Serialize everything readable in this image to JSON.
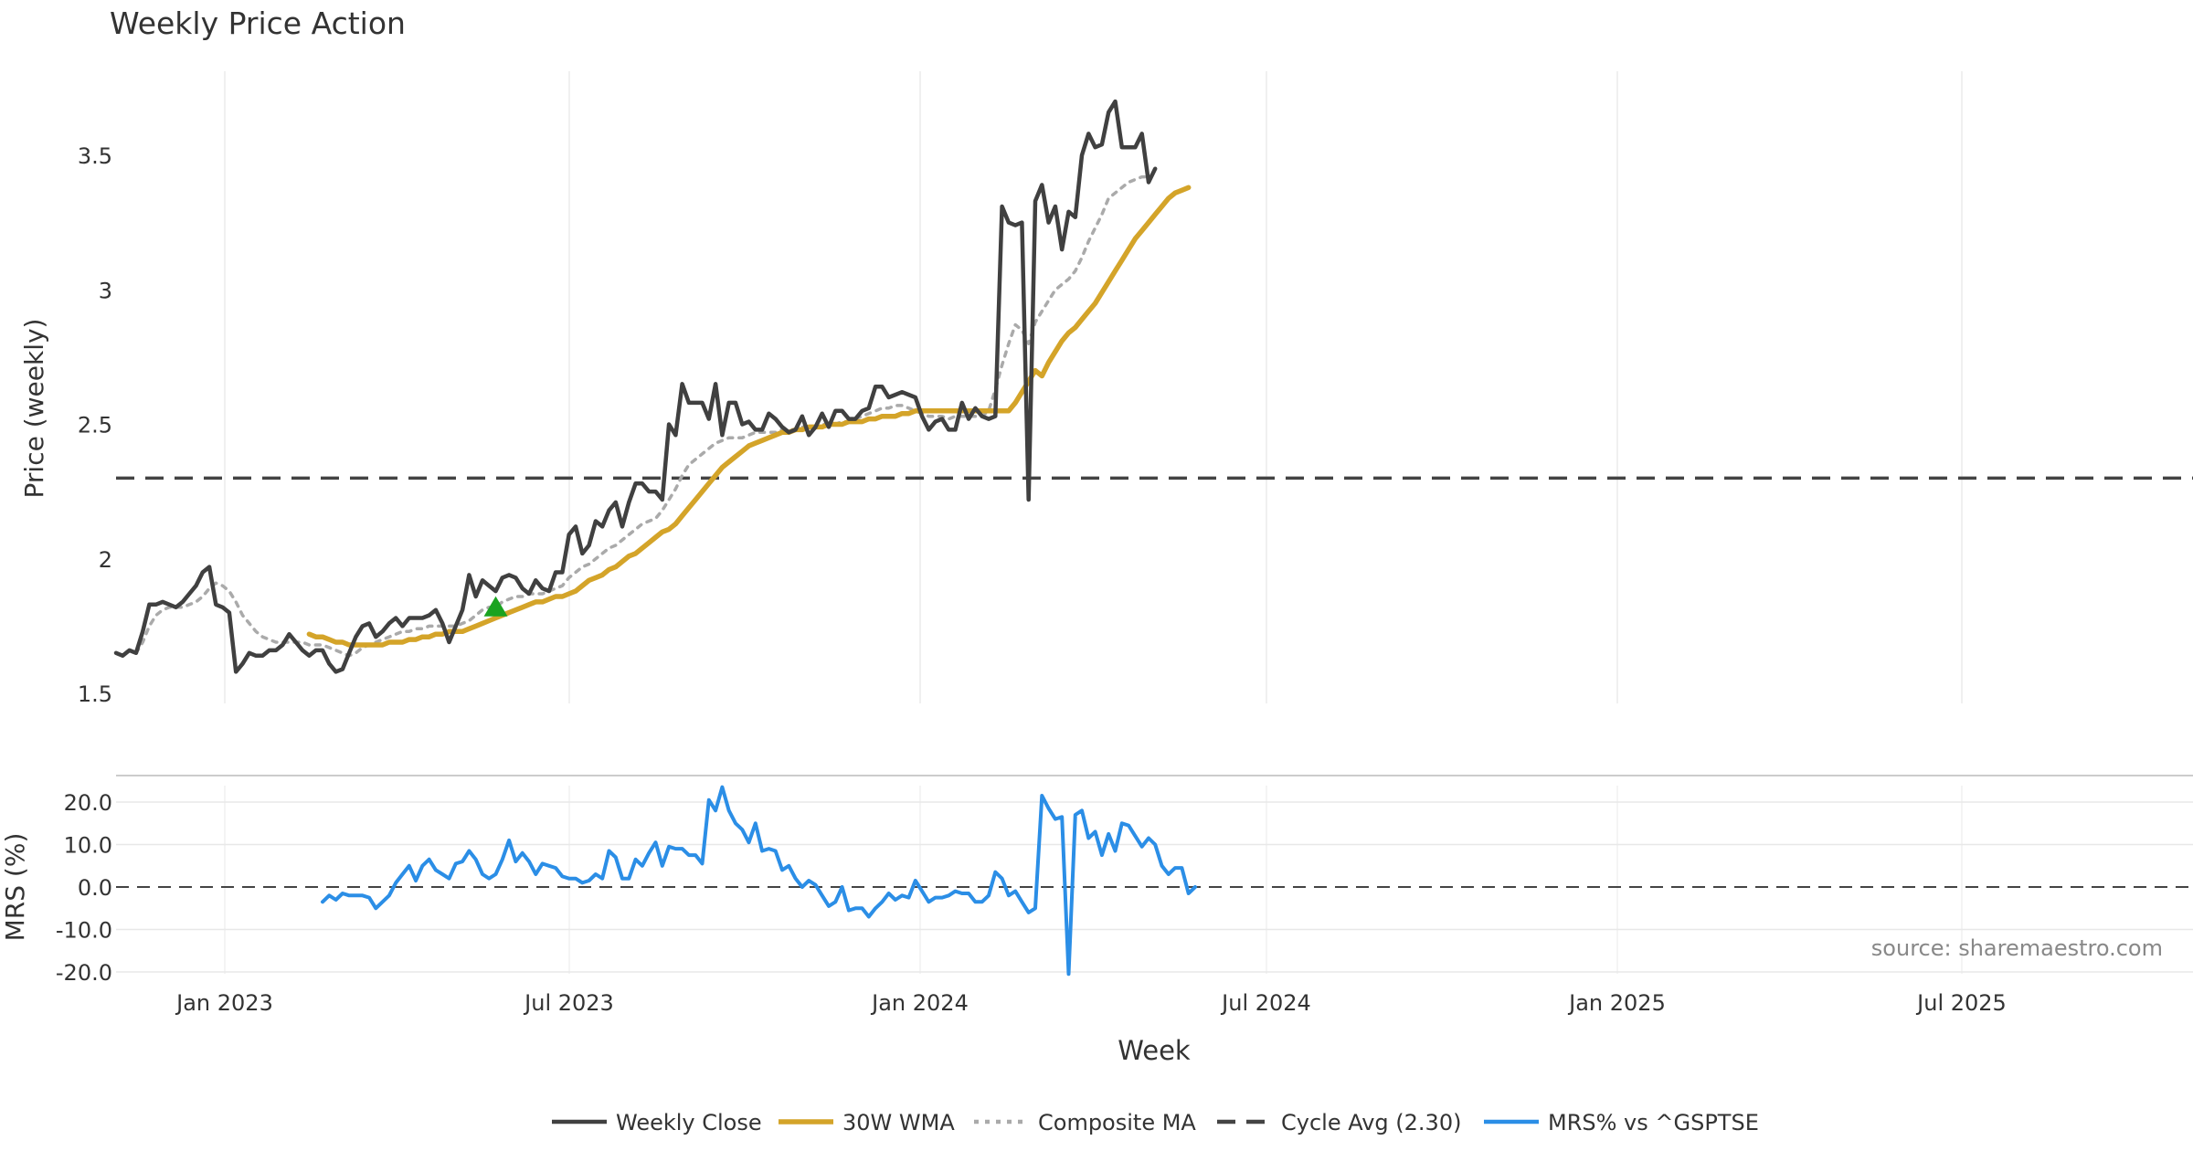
{
  "chart_data": {
    "type": "line",
    "title": "Weekly Price Action",
    "xlabel": "Week",
    "source": "source: sharemaestro.com",
    "x_ticks": [
      "Jan 2023",
      "Jul 2023",
      "Jan 2024",
      "Jul 2024",
      "Jan 2025",
      "Jul 2025"
    ],
    "colors": {
      "weekly_close": "#404040",
      "wma30": "#d4a429",
      "composite": "#aaaaaa",
      "cycle": "#444444",
      "mrs": "#2b8ee6",
      "signal": "#1aa320"
    },
    "price_panel": {
      "ylabel": "Price (weekly)",
      "ylim": [
        1.5,
        3.75
      ],
      "yticks": [
        "1.5",
        "2",
        "2.5",
        "3",
        "3.5"
      ],
      "cycle_avg": 2.3,
      "signal": {
        "label": "buy-signal",
        "week": 57,
        "value": 1.82
      },
      "series": [
        {
          "key": "weekly_close",
          "name": "Weekly Close",
          "start_week": 0,
          "values": [
            1.65,
            1.64,
            1.66,
            1.65,
            1.73,
            1.83,
            1.83,
            1.84,
            1.83,
            1.82,
            1.84,
            1.87,
            1.9,
            1.95,
            1.97,
            1.83,
            1.82,
            1.8,
            1.58,
            1.61,
            1.65,
            1.64,
            1.64,
            1.66,
            1.66,
            1.68,
            1.72,
            1.69,
            1.66,
            1.64,
            1.66,
            1.66,
            1.61,
            1.58,
            1.59,
            1.65,
            1.71,
            1.75,
            1.76,
            1.71,
            1.73,
            1.76,
            1.78,
            1.75,
            1.78,
            1.78,
            1.78,
            1.79,
            1.81,
            1.76,
            1.69,
            1.75,
            1.81,
            1.94,
            1.86,
            1.92,
            1.9,
            1.88,
            1.93,
            1.94,
            1.93,
            1.89,
            1.87,
            1.92,
            1.89,
            1.88,
            1.95,
            1.95,
            2.09,
            2.12,
            2.02,
            2.05,
            2.14,
            2.12,
            2.18,
            2.21,
            2.12,
            2.21,
            2.28,
            2.28,
            2.25,
            2.25,
            2.22,
            2.5,
            2.46,
            2.65,
            2.58,
            2.58,
            2.58,
            2.52,
            2.65,
            2.46,
            2.58,
            2.58,
            2.5,
            2.51,
            2.48,
            2.48,
            2.54,
            2.52,
            2.49,
            2.47,
            2.48,
            2.53,
            2.46,
            2.49,
            2.54,
            2.49,
            2.55,
            2.55,
            2.52,
            2.52,
            2.55,
            2.56,
            2.64,
            2.64,
            2.6,
            2.61,
            2.62,
            2.61,
            2.6,
            2.53,
            2.48,
            2.51,
            2.52,
            2.48,
            2.48,
            2.58,
            2.52,
            2.56,
            2.53,
            2.52,
            2.53,
            3.31,
            3.25,
            3.24,
            3.25,
            2.22,
            3.33,
            3.39,
            3.25,
            3.31,
            3.15,
            3.29,
            3.27,
            3.5,
            3.58,
            3.53,
            3.54,
            3.66,
            3.7,
            3.53,
            3.53,
            3.53,
            3.58,
            3.4,
            3.45
          ]
        },
        {
          "key": "wma30",
          "name": "30W WMA",
          "start_week": 29,
          "values": [
            1.72,
            1.71,
            1.71,
            1.7,
            1.69,
            1.69,
            1.68,
            1.68,
            1.68,
            1.68,
            1.68,
            1.68,
            1.69,
            1.69,
            1.69,
            1.7,
            1.7,
            1.71,
            1.71,
            1.72,
            1.72,
            1.73,
            1.73,
            1.73,
            1.74,
            1.75,
            1.76,
            1.77,
            1.78,
            1.79,
            1.8,
            1.81,
            1.82,
            1.83,
            1.84,
            1.84,
            1.85,
            1.86,
            1.86,
            1.87,
            1.88,
            1.9,
            1.92,
            1.93,
            1.94,
            1.96,
            1.97,
            1.99,
            2.01,
            2.02,
            2.04,
            2.06,
            2.08,
            2.1,
            2.11,
            2.13,
            2.16,
            2.19,
            2.22,
            2.25,
            2.28,
            2.31,
            2.34,
            2.36,
            2.38,
            2.4,
            2.42,
            2.43,
            2.44,
            2.45,
            2.46,
            2.47,
            2.47,
            2.48,
            2.48,
            2.49,
            2.49,
            2.49,
            2.5,
            2.5,
            2.5,
            2.51,
            2.51,
            2.51,
            2.52,
            2.52,
            2.53,
            2.53,
            2.53,
            2.54,
            2.54,
            2.55,
            2.55,
            2.55,
            2.55,
            2.55,
            2.55,
            2.55,
            2.55,
            2.55,
            2.55,
            2.55,
            2.55,
            2.55,
            2.55,
            2.55,
            2.58,
            2.62,
            2.66,
            2.7,
            2.68,
            2.73,
            2.77,
            2.81,
            2.84,
            2.86,
            2.89,
            2.92,
            2.95,
            2.99,
            3.03,
            3.07,
            3.11,
            3.15,
            3.19,
            3.22,
            3.25,
            3.28,
            3.31,
            3.34,
            3.36,
            3.37,
            3.38
          ]
        },
        {
          "key": "composite",
          "name": "Composite MA",
          "start_week": 3,
          "values": [
            1.65,
            1.69,
            1.75,
            1.79,
            1.81,
            1.82,
            1.82,
            1.82,
            1.83,
            1.84,
            1.86,
            1.89,
            1.91,
            1.9,
            1.88,
            1.84,
            1.79,
            1.76,
            1.73,
            1.71,
            1.7,
            1.69,
            1.69,
            1.69,
            1.69,
            1.69,
            1.68,
            1.68,
            1.68,
            1.67,
            1.66,
            1.65,
            1.64,
            1.65,
            1.67,
            1.68,
            1.69,
            1.7,
            1.71,
            1.72,
            1.73,
            1.73,
            1.74,
            1.74,
            1.75,
            1.75,
            1.75,
            1.75,
            1.75,
            1.76,
            1.77,
            1.79,
            1.81,
            1.82,
            1.82,
            1.84,
            1.85,
            1.86,
            1.86,
            1.87,
            1.87,
            1.87,
            1.88,
            1.89,
            1.9,
            1.93,
            1.95,
            1.97,
            1.98,
            2.0,
            2.02,
            2.04,
            2.05,
            2.07,
            2.09,
            2.11,
            2.13,
            2.14,
            2.15,
            2.18,
            2.22,
            2.26,
            2.31,
            2.35,
            2.37,
            2.39,
            2.41,
            2.43,
            2.44,
            2.45,
            2.45,
            2.45,
            2.46,
            2.47,
            2.47,
            2.47,
            2.47,
            2.48,
            2.48,
            2.48,
            2.49,
            2.49,
            2.49,
            2.5,
            2.5,
            2.5,
            2.51,
            2.51,
            2.52,
            2.53,
            2.54,
            2.55,
            2.56,
            2.56,
            2.57,
            2.57,
            2.56,
            2.55,
            2.54,
            2.53,
            2.53,
            2.53,
            2.52,
            2.53,
            2.53,
            2.53,
            2.53,
            2.53,
            2.55,
            2.63,
            2.72,
            2.8,
            2.87,
            2.85,
            2.8,
            2.88,
            2.92,
            2.96,
            3.0,
            3.02,
            3.04,
            3.07,
            3.12,
            3.18,
            3.23,
            3.28,
            3.34,
            3.36,
            3.38,
            3.4,
            3.41,
            3.42,
            3.42
          ]
        }
      ]
    },
    "mrs_panel": {
      "ylabel": "MRS (%)",
      "ylim": [
        -20,
        25
      ],
      "yticks": [
        "20.0",
        "10.0",
        "0.0",
        "-10.0",
        "-20.0"
      ],
      "series": [
        {
          "key": "mrs",
          "name": "MRS% vs ^GSPTSE",
          "start_week": 31,
          "values": [
            -3.5,
            -2.0,
            -3.0,
            -1.5,
            -2.0,
            -2.0,
            -2.0,
            -2.5,
            -5.0,
            -3.5,
            -2.0,
            1.0,
            3.0,
            5.0,
            1.5,
            5.0,
            6.5,
            4.0,
            3.0,
            2.0,
            5.5,
            6.0,
            8.5,
            6.5,
            3.0,
            2.0,
            3.0,
            6.5,
            11.0,
            6.0,
            8.0,
            6.0,
            3.0,
            5.5,
            5.0,
            4.5,
            2.5,
            2.0,
            2.0,
            1.0,
            1.5,
            3.0,
            2.0,
            8.5,
            7.0,
            2.0,
            2.0,
            6.5,
            5.0,
            8.0,
            10.5,
            5.0,
            9.5,
            9.0,
            9.0,
            7.5,
            7.5,
            5.5,
            20.5,
            18.0,
            23.5,
            18.0,
            15.0,
            13.5,
            10.5,
            15.0,
            8.5,
            9.0,
            8.5,
            4.0,
            5.0,
            2.0,
            0.0,
            1.5,
            0.5,
            -2.0,
            -4.5,
            -3.5,
            0.0,
            -5.5,
            -5.0,
            -5.0,
            -7.0,
            -5.0,
            -3.5,
            -1.5,
            -3.0,
            -2.0,
            -2.5,
            1.5,
            -1.0,
            -3.5,
            -2.5,
            -2.5,
            -2.0,
            -1.0,
            -1.5,
            -1.5,
            -3.5,
            -3.5,
            -2.0,
            3.5,
            2.0,
            -2.0,
            -1.0,
            -3.5,
            -6.0,
            -5.0,
            21.5,
            18.5,
            16.0,
            16.5,
            -20.5,
            17.0,
            18.0,
            11.5,
            13.0,
            7.5,
            12.5,
            8.5,
            15.0,
            14.5,
            12.0,
            9.5,
            11.5,
            10.0,
            5.0,
            3.0,
            4.5,
            4.5,
            -1.5,
            0.0
          ]
        }
      ]
    },
    "legend": [
      {
        "label": "Weekly Close",
        "key": "weekly_close",
        "style": "solid"
      },
      {
        "label": "30W WMA",
        "key": "wma30",
        "style": "solid"
      },
      {
        "label": "Composite MA",
        "key": "composite",
        "style": "dotted"
      },
      {
        "label": "Cycle Avg (2.30)",
        "key": "cycle",
        "style": "dashed"
      },
      {
        "label": "MRS% vs ^GSPTSE",
        "key": "mrs",
        "style": "solid"
      }
    ]
  }
}
